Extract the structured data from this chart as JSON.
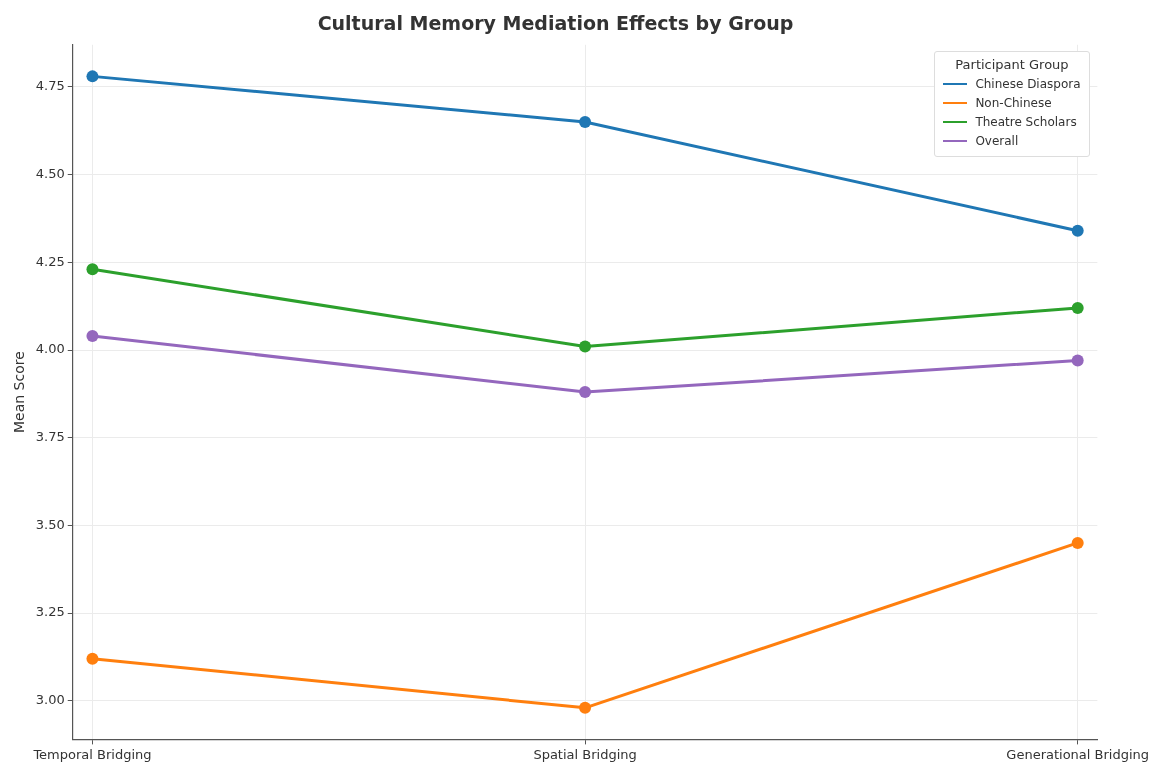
{
  "chart_data": {
    "type": "line",
    "title": "Cultural Memory Mediation Effects by Group",
    "ylabel": "Mean Score",
    "legend_title": "Participant Group",
    "categories": [
      "Temporal Bridging",
      "Spatial Bridging",
      "Generational Bridging"
    ],
    "series": [
      {
        "name": "Chinese Diaspora",
        "color": "#1f77b4",
        "values": [
          4.78,
          4.65,
          4.34
        ]
      },
      {
        "name": "Non-Chinese",
        "color": "#ff7f0e",
        "values": [
          3.12,
          2.98,
          3.45
        ]
      },
      {
        "name": "Theatre Scholars",
        "color": "#2ca02c",
        "values": [
          4.23,
          4.01,
          4.12
        ]
      },
      {
        "name": "Overall",
        "color": "#9467bd",
        "values": [
          4.04,
          3.88,
          3.97
        ]
      }
    ],
    "ylim": [
      2.89,
      4.87
    ],
    "yticks": [
      {
        "value": 3,
        "label": "3.00"
      },
      {
        "value": 3.25,
        "label": "3.25"
      },
      {
        "value": 3.5,
        "label": "3.50"
      },
      {
        "value": 3.75,
        "label": "3.75"
      },
      {
        "value": 4,
        "label": "4.00"
      },
      {
        "value": 4.25,
        "label": "4.25"
      },
      {
        "value": 4.5,
        "label": "4.50"
      },
      {
        "value": 4.75,
        "label": "4.75"
      }
    ],
    "grid": true,
    "legend": "top right",
    "marker": "circle",
    "line_style": "solid"
  }
}
